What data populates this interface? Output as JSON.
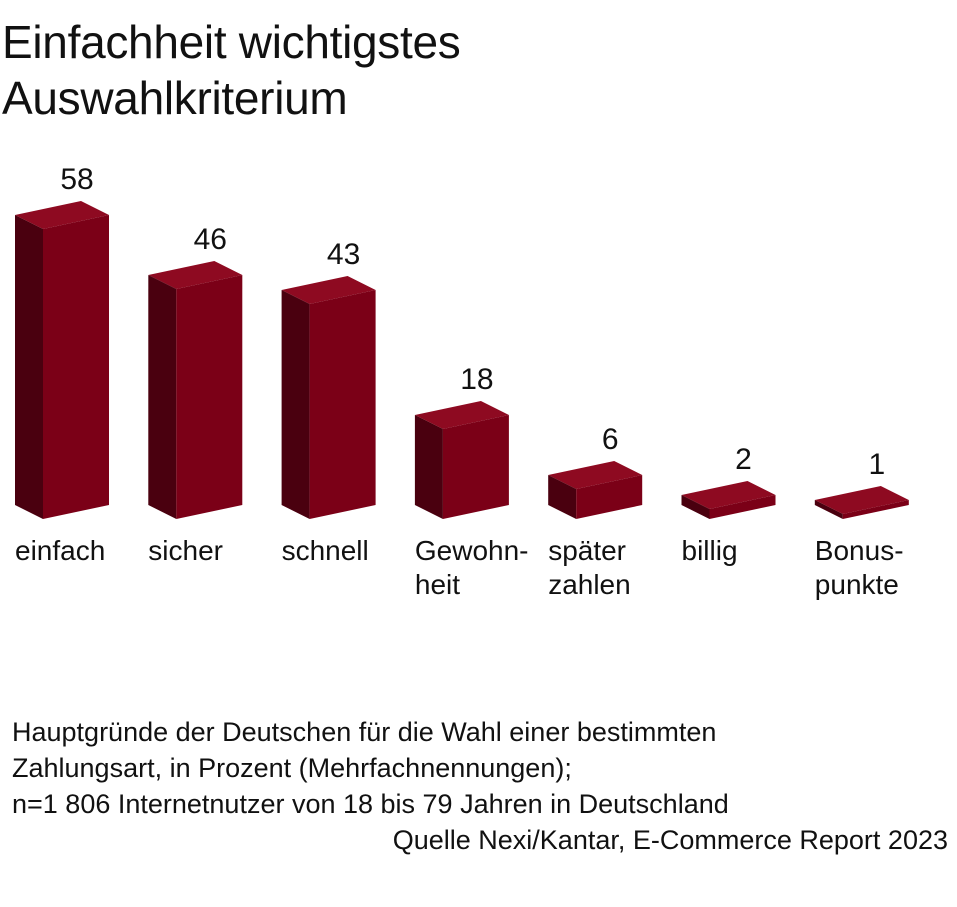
{
  "title_lines": [
    "Einfachheit wichtigstes",
    "Auswahlkriterium"
  ],
  "colors": {
    "front": "#7b0017",
    "top": "#8e0a21",
    "side": "#4a000f"
  },
  "chart_data": {
    "type": "bar",
    "title": "Einfachheit wichtigstes Auswahlkriterium",
    "categories": [
      [
        "einfach"
      ],
      [
        "sicher"
      ],
      [
        "schnell"
      ],
      [
        "Gewohn-",
        "heit"
      ],
      [
        "später",
        "zahlen"
      ],
      [
        "billig"
      ],
      [
        "Bonus-",
        "punkte"
      ]
    ],
    "values": [
      58,
      46,
      43,
      18,
      6,
      2,
      1
    ],
    "unit": "Prozent"
  },
  "footer": {
    "lines": [
      "Hauptgründe der Deutschen für die Wahl einer bestimmten",
      "Zahlungsart, in Prozent (Mehrfachnennungen);",
      "n=1 806  Internetnutzer von 18 bis 79 Jahren in Deutschland"
    ],
    "source": "Quelle Nexi/Kantar, E-Commerce Report 2023"
  }
}
